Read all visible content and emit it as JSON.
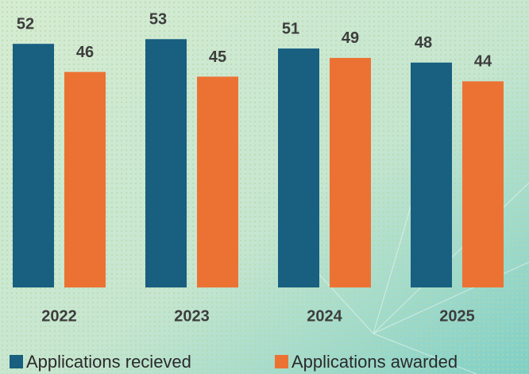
{
  "chart_data": {
    "type": "bar",
    "categories": [
      "2022",
      "2023",
      "2024",
      "2025"
    ],
    "series": [
      {
        "name": "Applications recieved",
        "color": "#185f80",
        "values": [
          52,
          53,
          51,
          48
        ]
      },
      {
        "name": "Applications awarded",
        "color": "#ec7234",
        "values": [
          46,
          45,
          49,
          44
        ]
      }
    ],
    "ylim": [
      0,
      60
    ]
  }
}
